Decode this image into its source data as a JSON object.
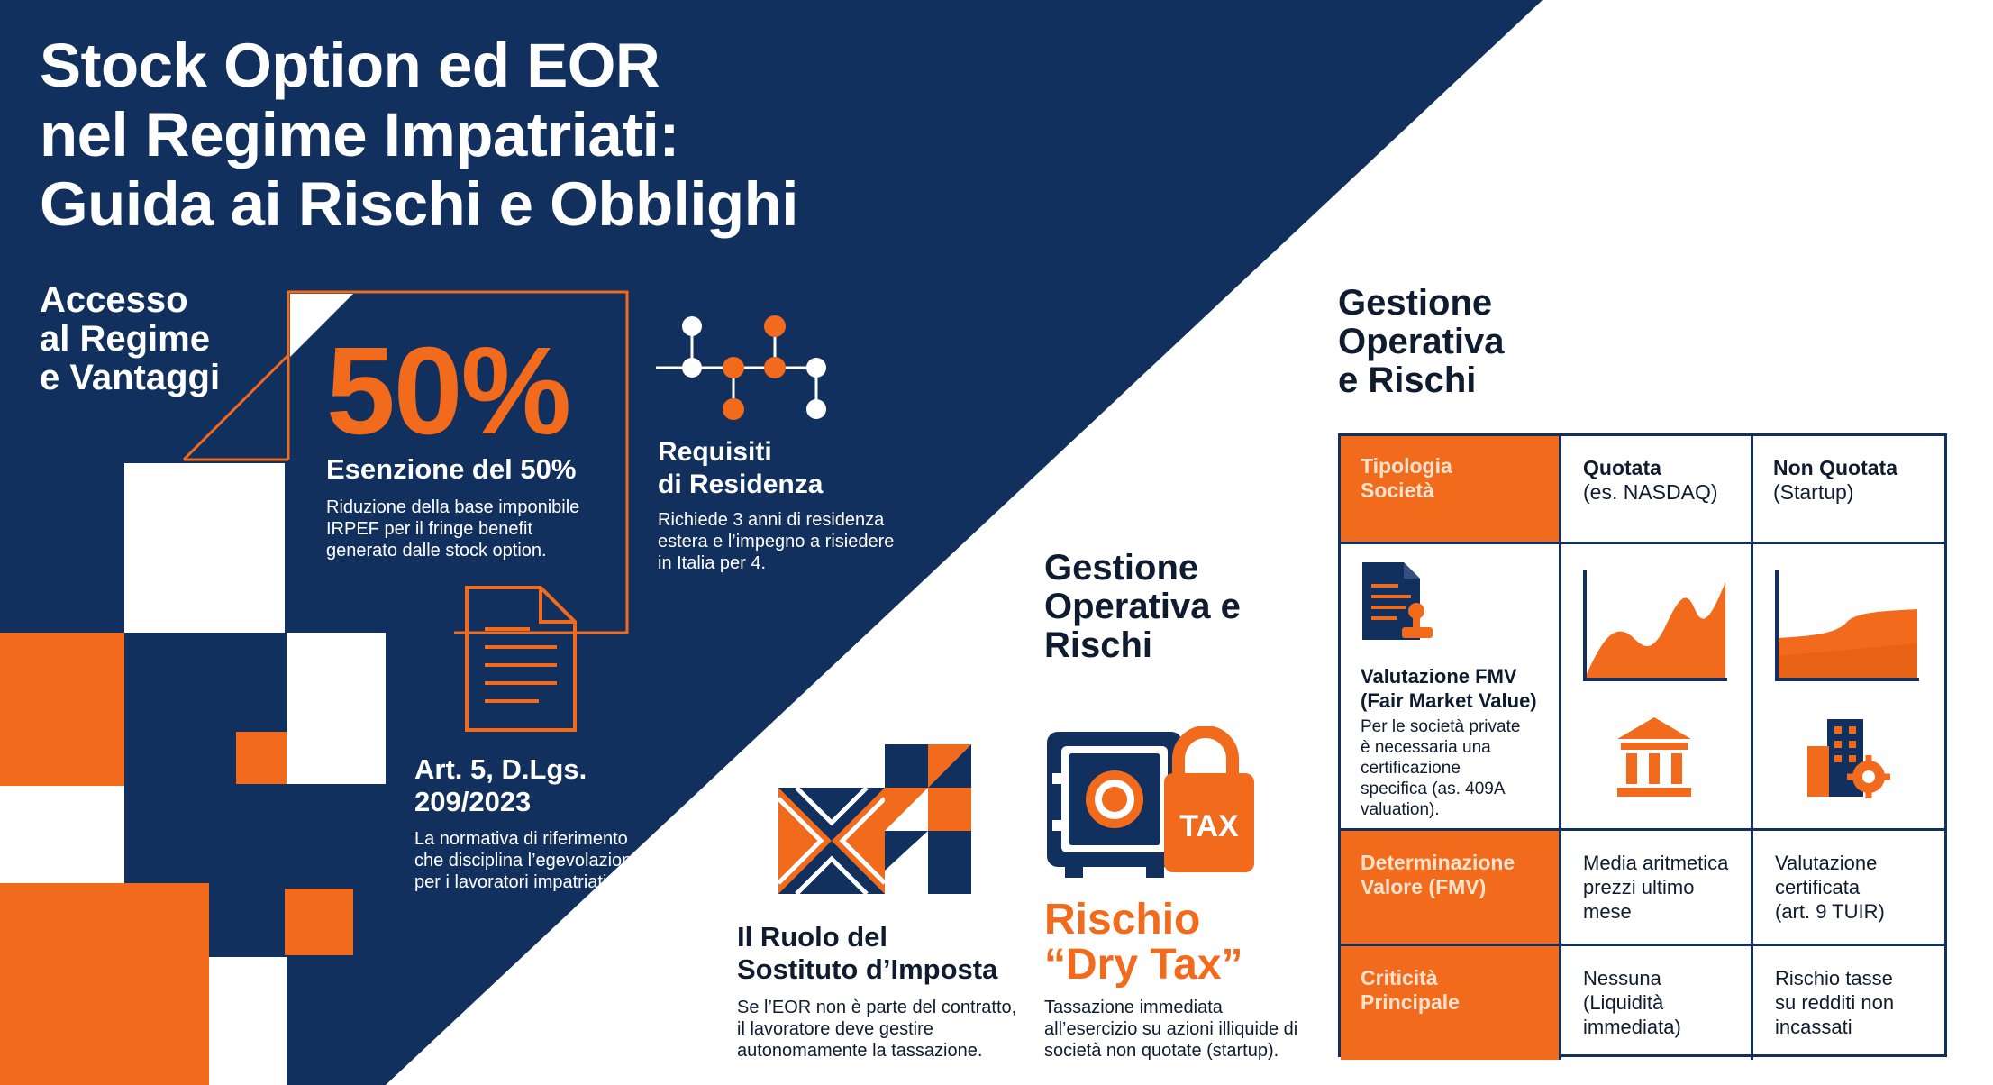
{
  "title": "Stock Option ed EOR\nnel Regime Impatriati:\nGuida ai Rischi e Obblighi",
  "left_section": {
    "heading": "Accesso\nal Regime\ne Vantaggi",
    "big_stat": "50%",
    "exemption": {
      "title": "Esenzione del 50%",
      "text": "Riduzione della base imponibile\nIRPEF per il fringe benefit\ngenerato dalle stock option."
    },
    "residence": {
      "title": "Requisiti\ndi Residenza",
      "text": "Richiede 3 anni di residenza\nestera e l’impegno a risiedere\nin Italia per 4."
    },
    "law": {
      "title": "Art. 5, D.Lgs.\n209/2023",
      "text": "La normativa di riferimento\nche disciplina l’egevolazione\nper i lavoratori impatriati."
    }
  },
  "middle_section": {
    "heading": "Gestione\nOperativa e\nRischi",
    "substitute": {
      "title": "Il Ruolo del\nSostituto d’Imposta",
      "text": "Se l’EOR non è parte del contratto,\nil lavoratore deve gestire\nautonomamente la tassazione."
    },
    "dry_tax": {
      "title": "Rischio\n“Dry Tax”",
      "badge": "TAX",
      "text": "Tassazione immediata\nall’esercizio su azioni illiquide di\nsocietà non quotate (startup)."
    }
  },
  "right_section": {
    "heading": "Gestione\nOperativa\ne Rischi",
    "table": {
      "corner": "Tipologia\nSocietà",
      "col1_title": "Quotata",
      "col1_sub": "(es. NASDAQ)",
      "col2_title": "Non Quotata",
      "col2_sub": "(Startup)",
      "fmv_title": "Valutazione FMV\n(Fair Market Value)",
      "fmv_text": "Per le società private\nè necessaria una\ncertificazione\nspecifica (as. 409A\nvaluation).",
      "row2_head": "Determinazione\nValore (FMV)",
      "row2_col1": "Media aritmetica\nprezzi ultimo\nmese",
      "row2_col2": "Valutazione\ncertificata\n(art. 9 TUIR)",
      "row3_head": "Criticità\nPrincipale",
      "row3_col1": "Nessuna\n(Liquidità\nimmediata)",
      "row3_col2": "Rischio tasse\nsu redditi non\nincassati"
    }
  },
  "colors": {
    "navy": "#12305e",
    "orange": "#f26a1b",
    "white": "#ffffff"
  }
}
